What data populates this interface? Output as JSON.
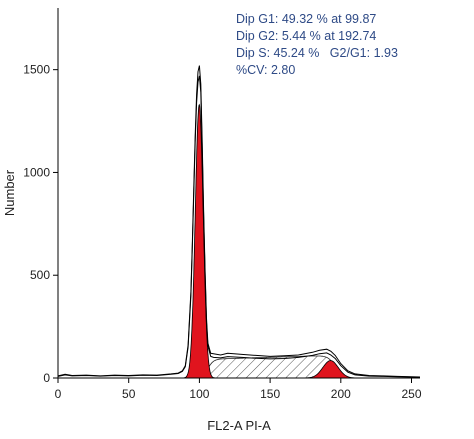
{
  "chart_data": {
    "type": "area",
    "title": "",
    "xlabel": "FL2-A PI-A",
    "ylabel": "Number",
    "xlim": [
      0,
      256
    ],
    "ylim": [
      0,
      1800
    ],
    "x_ticks": [
      0,
      50,
      100,
      150,
      200,
      250
    ],
    "y_ticks": [
      0,
      500,
      1000,
      1500
    ],
    "grid": false,
    "colors": {
      "g1_fill": "#e0141e",
      "g2_fill": "#e0141e",
      "s_phase_hatch": "#555555",
      "histogram_line": "#000000",
      "stats_text": "#2e4a86",
      "axis": "#000000"
    },
    "stats": [
      "Dip G1: 49.32 % at 99.87",
      "Dip G2: 5.44 % at 192.74",
      "Dip S: 45.24 %   G2/G1: 1.93",
      "%CV: 2.80"
    ],
    "components": {
      "g1": {
        "mean": 99.87,
        "cv_percent": 2.8,
        "peak": 1330,
        "percent": 49.32
      },
      "g2": {
        "mean": 192.74,
        "peak": 85,
        "percent": 5.44
      },
      "s_phase": {
        "percent": 45.24,
        "from": 100,
        "to": 193,
        "level_start": 90,
        "level_end": 110
      }
    },
    "histogram": {
      "x": [
        0,
        5,
        10,
        20,
        30,
        40,
        50,
        60,
        70,
        80,
        85,
        88,
        90,
        92,
        94,
        95,
        96,
        97,
        98,
        99,
        100,
        101,
        102,
        103,
        104,
        105,
        106,
        108,
        110,
        115,
        120,
        130,
        140,
        150,
        160,
        170,
        180,
        185,
        190,
        193,
        196,
        200,
        205,
        210,
        220,
        230,
        240,
        250,
        256
      ],
      "series": [
        {
          "values": [
            10,
            18,
            12,
            14,
            10,
            14,
            12,
            15,
            14,
            20,
            24,
            35,
            60,
            160,
            420,
            650,
            930,
            1180,
            1380,
            1490,
            1520,
            1430,
            1150,
            820,
            520,
            290,
            170,
            120,
            118,
            112,
            120,
            115,
            110,
            105,
            108,
            112,
            125,
            135,
            140,
            130,
            110,
            70,
            35,
            20,
            12,
            10,
            8,
            6,
            5
          ]
        },
        {
          "values": [
            8,
            15,
            10,
            12,
            9,
            12,
            10,
            13,
            12,
            18,
            22,
            32,
            55,
            150,
            400,
            630,
            900,
            1150,
            1340,
            1440,
            1470,
            1390,
            1110,
            790,
            500,
            270,
            155,
            105,
            100,
            98,
            104,
            100,
            96,
            93,
            95,
            100,
            110,
            118,
            122,
            112,
            95,
            60,
            28,
            15,
            9,
            8,
            6,
            5,
            4
          ]
        }
      ]
    }
  }
}
